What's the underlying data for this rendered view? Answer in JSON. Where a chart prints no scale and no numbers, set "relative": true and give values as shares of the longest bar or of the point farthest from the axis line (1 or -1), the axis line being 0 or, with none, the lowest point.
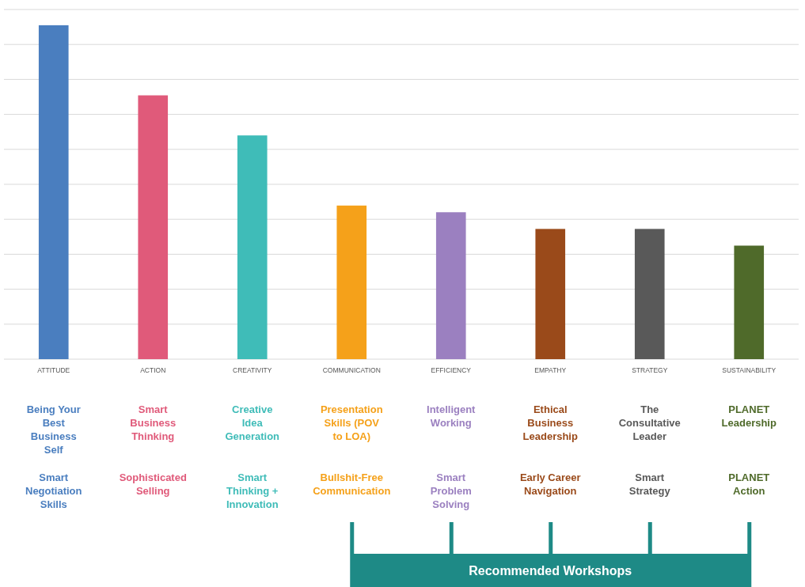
{
  "chart_data": {
    "type": "bar",
    "relative": true,
    "grid": "y",
    "categories": [
      "ATTITUDE",
      "ACTION",
      "CREATIVITY",
      "COMMUNICATION",
      "EFFICIENCY",
      "EMPATHY",
      "STRATEGY",
      "SUSTAINABILITY"
    ],
    "values": [
      1,
      0.79,
      0.67,
      0.46,
      0.44,
      0.39,
      0.39,
      0.34
    ],
    "colors": [
      "#4a7ebf",
      "#e05a7a",
      "#3fbcb8",
      "#f5a11a",
      "#9b80c0",
      "#9a4a1a",
      "#595959",
      "#4f6a2a"
    ],
    "annotations": [
      "Being Your Best Business Self",
      "Smart Business Thinking",
      "Creative Idea Generation",
      "Presentation Skills (POV to LOA)",
      "Intelligent Working",
      "Ethical Business Leadership",
      "The Consultative Leader",
      "PLANET Leadership",
      "Smart Negotiation Skills",
      "Sophisticated Selling",
      "Smart Thinking + Innovation",
      "Bullshit-Free Communication",
      "Smart Problem Solving",
      "Early Career Navigation",
      "Smart Strategy",
      "PLANET Action",
      "Recommended Workshops"
    ]
  }
}
